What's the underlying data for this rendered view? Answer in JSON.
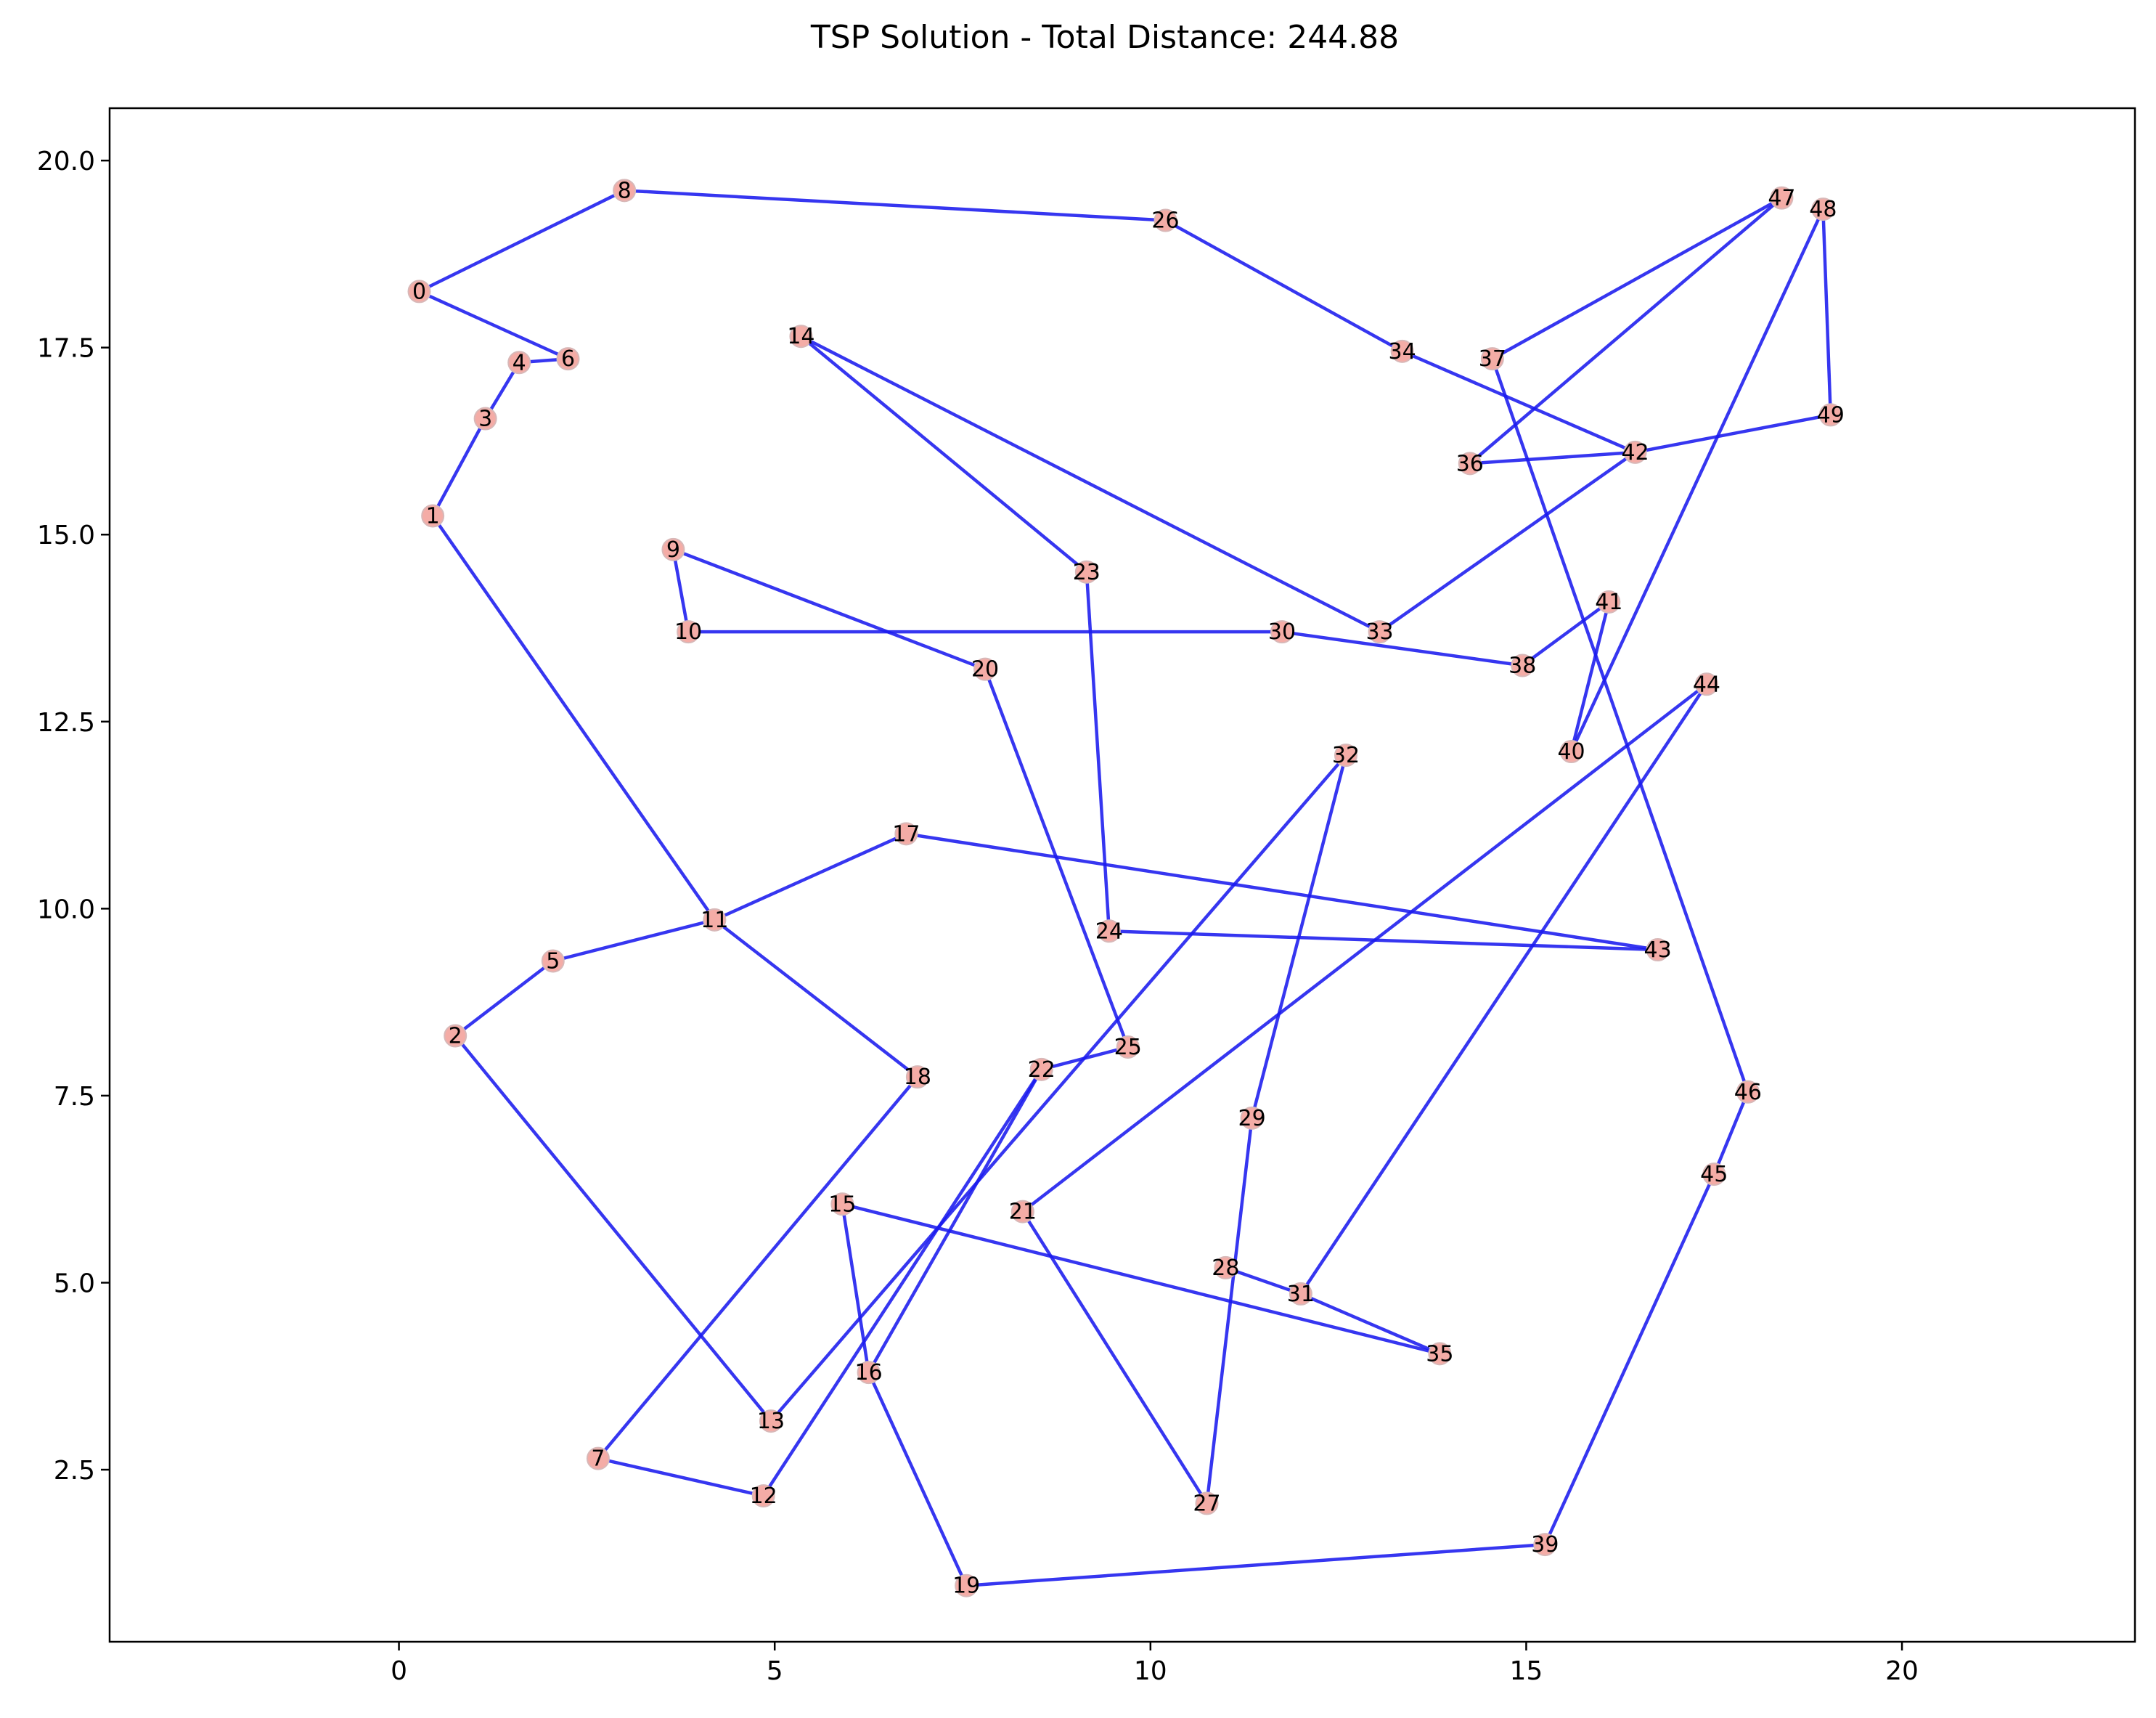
{
  "chart_data": {
    "type": "scatter",
    "title": "TSP Solution - Total Distance: 244.88",
    "xlabel": "",
    "ylabel": "",
    "xlim": [
      -3.85,
      23.1
    ],
    "ylim": [
      0.2,
      20.7
    ],
    "xticks": [
      0,
      5,
      10,
      15,
      20
    ],
    "yticks": [
      2.5,
      5.0,
      7.5,
      10.0,
      12.5,
      15.0,
      17.5,
      20.0
    ],
    "xtick_labels": [
      "0",
      "5",
      "10",
      "15",
      "20"
    ],
    "ytick_labels": [
      "2.5",
      "5.0",
      "7.5",
      "10.0",
      "12.5",
      "15.0",
      "17.5",
      "20.0"
    ],
    "grid": false,
    "colors": {
      "route": "#1a1aee",
      "node": "#f4aca6",
      "node_edge": "#d8b8b8",
      "frame": "#000000"
    },
    "nodes": [
      {
        "id": "0",
        "x": 0.27,
        "y": 18.25
      },
      {
        "id": "1",
        "x": 0.45,
        "y": 15.25
      },
      {
        "id": "2",
        "x": 0.75,
        "y": 8.3
      },
      {
        "id": "3",
        "x": 1.15,
        "y": 16.55
      },
      {
        "id": "4",
        "x": 1.6,
        "y": 17.3
      },
      {
        "id": "5",
        "x": 2.05,
        "y": 9.3
      },
      {
        "id": "6",
        "x": 2.25,
        "y": 17.35
      },
      {
        "id": "7",
        "x": 2.65,
        "y": 2.65
      },
      {
        "id": "8",
        "x": 3.0,
        "y": 19.6
      },
      {
        "id": "9",
        "x": 3.65,
        "y": 14.8
      },
      {
        "id": "10",
        "x": 3.85,
        "y": 13.7
      },
      {
        "id": "11",
        "x": 4.2,
        "y": 9.85
      },
      {
        "id": "12",
        "x": 4.85,
        "y": 2.15
      },
      {
        "id": "13",
        "x": 4.95,
        "y": 3.15
      },
      {
        "id": "14",
        "x": 5.35,
        "y": 17.65
      },
      {
        "id": "15",
        "x": 5.9,
        "y": 6.05
      },
      {
        "id": "16",
        "x": 6.25,
        "y": 3.8
      },
      {
        "id": "17",
        "x": 6.75,
        "y": 11.0
      },
      {
        "id": "18",
        "x": 6.9,
        "y": 7.75
      },
      {
        "id": "19",
        "x": 7.55,
        "y": 0.95
      },
      {
        "id": "20",
        "x": 7.8,
        "y": 13.2
      },
      {
        "id": "21",
        "x": 8.3,
        "y": 5.95
      },
      {
        "id": "22",
        "x": 8.55,
        "y": 7.85
      },
      {
        "id": "23",
        "x": 9.15,
        "y": 14.5
      },
      {
        "id": "24",
        "x": 9.45,
        "y": 9.7
      },
      {
        "id": "25",
        "x": 9.7,
        "y": 8.15
      },
      {
        "id": "26",
        "x": 10.2,
        "y": 19.2
      },
      {
        "id": "27",
        "x": 10.75,
        "y": 2.05
      },
      {
        "id": "28",
        "x": 11.0,
        "y": 5.2
      },
      {
        "id": "29",
        "x": 11.35,
        "y": 7.2
      },
      {
        "id": "30",
        "x": 11.75,
        "y": 13.7
      },
      {
        "id": "31",
        "x": 12.0,
        "y": 4.85
      },
      {
        "id": "32",
        "x": 12.6,
        "y": 12.05
      },
      {
        "id": "33",
        "x": 13.05,
        "y": 13.7
      },
      {
        "id": "34",
        "x": 13.35,
        "y": 17.45
      },
      {
        "id": "35",
        "x": 13.85,
        "y": 4.05
      },
      {
        "id": "36",
        "x": 14.25,
        "y": 15.95
      },
      {
        "id": "37",
        "x": 14.55,
        "y": 17.35
      },
      {
        "id": "38",
        "x": 14.95,
        "y": 13.25
      },
      {
        "id": "39",
        "x": 15.25,
        "y": 1.5
      },
      {
        "id": "40",
        "x": 15.6,
        "y": 12.1
      },
      {
        "id": "41",
        "x": 16.1,
        "y": 14.1
      },
      {
        "id": "42",
        "x": 16.45,
        "y": 16.1
      },
      {
        "id": "43",
        "x": 16.75,
        "y": 9.45
      },
      {
        "id": "44",
        "x": 17.4,
        "y": 13.0
      },
      {
        "id": "45",
        "x": 17.5,
        "y": 6.45
      },
      {
        "id": "46",
        "x": 17.95,
        "y": 7.55
      },
      {
        "id": "47",
        "x": 18.4,
        "y": 19.5
      },
      {
        "id": "48",
        "x": 18.95,
        "y": 19.35
      },
      {
        "id": "49",
        "x": 19.05,
        "y": 16.6
      }
    ],
    "route": [
      "0",
      "8",
      "26",
      "34",
      "42",
      "49",
      "48",
      "40",
      "41",
      "38",
      "30",
      "10",
      "9",
      "20",
      "25",
      "22",
      "16",
      "19",
      "39",
      "45",
      "46",
      "37",
      "47",
      "36",
      "42",
      "33",
      "14",
      "23",
      "24",
      "43",
      "17",
      "11",
      "1",
      "3",
      "4",
      "6",
      "0"
    ],
    "extra_segments": [
      [
        "2",
        "5"
      ],
      [
        "5",
        "11"
      ],
      [
        "11",
        "18"
      ],
      [
        "18",
        "7"
      ],
      [
        "7",
        "12"
      ],
      [
        "12",
        "22"
      ],
      [
        "2",
        "13"
      ],
      [
        "13",
        "32"
      ],
      [
        "32",
        "29"
      ],
      [
        "29",
        "27"
      ],
      [
        "27",
        "21"
      ],
      [
        "21",
        "44"
      ],
      [
        "44",
        "31"
      ],
      [
        "31",
        "35"
      ],
      [
        "35",
        "15"
      ],
      [
        "15",
        "16"
      ],
      [
        "28",
        "31"
      ]
    ]
  }
}
